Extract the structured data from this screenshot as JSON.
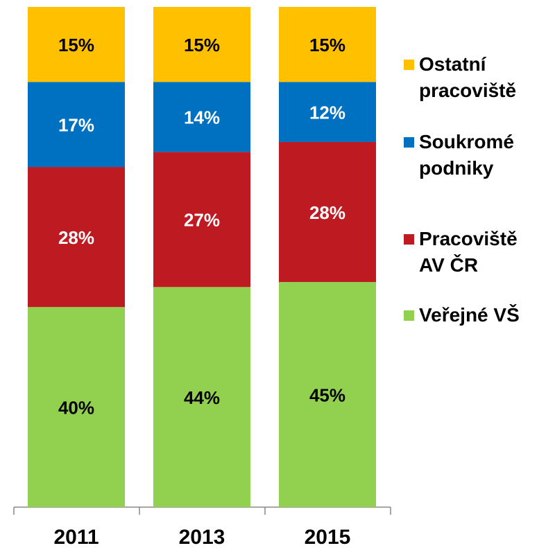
{
  "chart_data": {
    "type": "stacked_bar",
    "categories": [
      "2011",
      "2013",
      "2015"
    ],
    "ylim": [
      0,
      100
    ],
    "series": [
      {
        "name": "Veřejné VŠ",
        "color": "#92D050",
        "label_color": "#000000",
        "values": [
          40,
          44,
          45
        ],
        "value_labels": [
          "40%",
          "44%",
          "45%"
        ]
      },
      {
        "name": "Pracoviště AV ČR",
        "color": "#BE1A22",
        "label_color": "#FFFFFF",
        "values": [
          28,
          27,
          28
        ],
        "value_labels": [
          "28%",
          "27%",
          "28%"
        ]
      },
      {
        "name": "Soukromé podniky",
        "color": "#0070C0",
        "label_color": "#FFFFFF",
        "values": [
          17,
          14,
          12
        ],
        "value_labels": [
          "17%",
          "14%",
          "12%"
        ]
      },
      {
        "name": "Ostatní pracoviště",
        "color": "#FFC000",
        "label_color": "#000000",
        "values": [
          15,
          15,
          15
        ],
        "value_labels": [
          "15%",
          "15%",
          "15%"
        ]
      }
    ],
    "legend": "right"
  }
}
